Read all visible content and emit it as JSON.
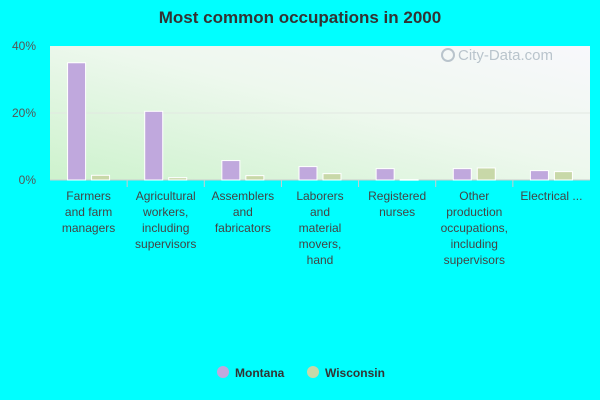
{
  "chart_data": {
    "type": "bar",
    "title": "Most common occupations in 2000",
    "categories": [
      [
        "Farmers",
        "and farm",
        "managers"
      ],
      [
        "Agricultural",
        "workers,",
        "including",
        "supervisors"
      ],
      [
        "Assemblers",
        "and",
        "fabricators"
      ],
      [
        "Laborers",
        "and",
        "material",
        "movers,",
        "hand"
      ],
      [
        "Registered",
        "nurses"
      ],
      [
        "Other",
        "production",
        "occupations,",
        "including",
        "supervisors"
      ],
      [
        "Electrical ..."
      ]
    ],
    "series": [
      {
        "name": "Montana",
        "color": "#c0a8dd",
        "values": [
          35.0,
          20.5,
          5.8,
          4.0,
          3.4,
          3.4,
          2.8
        ]
      },
      {
        "name": "Wisconsin",
        "color": "#c8d8a8",
        "values": [
          1.4,
          0.7,
          1.3,
          1.9,
          0.1,
          3.6,
          2.5
        ]
      }
    ],
    "yticks": [
      "0%",
      "20%",
      "40%"
    ],
    "ylim": [
      0,
      40
    ],
    "grid": true,
    "legend_position": "bottom-center"
  },
  "watermark": "City-Data.com"
}
